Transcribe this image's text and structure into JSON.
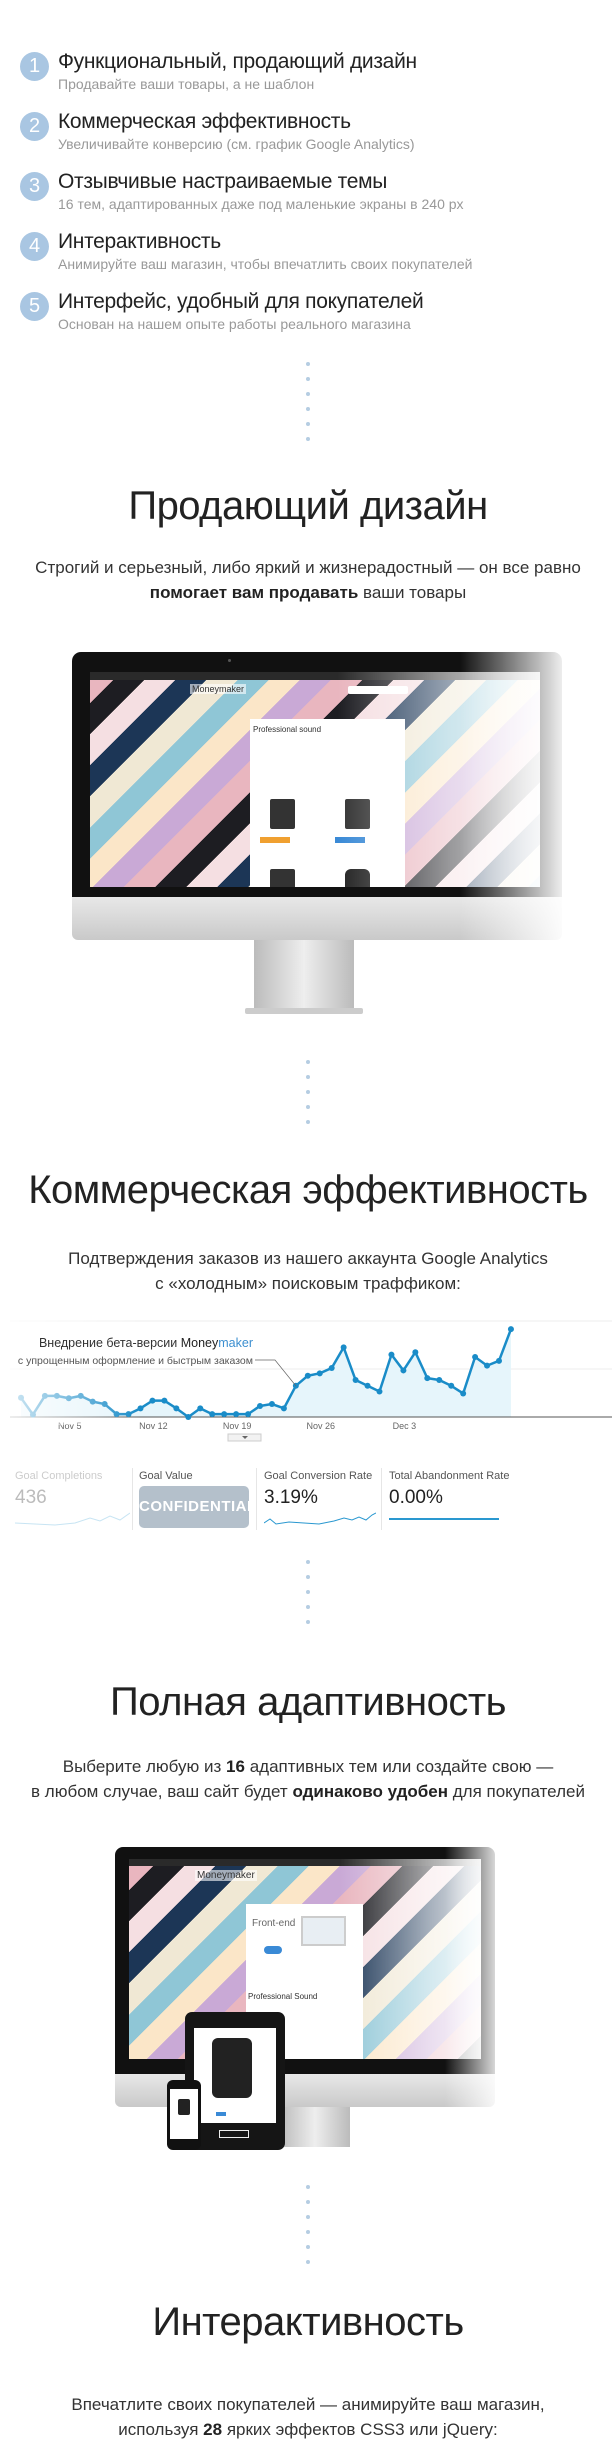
{
  "features": [
    {
      "num": "1",
      "title": "Функциональный, продающий дизайн",
      "subtitle": "Продавайте ваши товары, а не шаблон"
    },
    {
      "num": "2",
      "title": "Коммерческая эффективность",
      "subtitle": "Увеличивайте конверсию (см. график Google Analytics)"
    },
    {
      "num": "3",
      "title": "Отзывчивые настраиваемые темы",
      "subtitle": "16 тем, адаптированных даже под маленькие экраны в 240 px"
    },
    {
      "num": "4",
      "title": "Интерактивность",
      "subtitle": "Анимируйте ваш магазин, чтобы впечатлить своих покупателей"
    },
    {
      "num": "5",
      "title": "Интерфейс, удобный для покупателей",
      "subtitle": "Основан на нашем опыте работы реального магазина"
    }
  ],
  "section_design": {
    "title": "Продающий дизайн",
    "line1": "Строгий и серьезный, либо яркий и жизнерадостный — он все равно",
    "line2_bold": "помогает вам продавать",
    "line2_rest": " ваши товары",
    "screen": {
      "logo": "Moneymaker",
      "heading": "Professional sound"
    }
  },
  "section_commerce": {
    "title": "Коммерческая эффективность",
    "line1": "Подтверждения заказов из нашего аккаунта Google Analytics",
    "line2": "с «холодным» поисковым траффиком:",
    "annotation": {
      "line1_prefix": "Внедрение бета-версии ",
      "brand_dark": "Money",
      "brand_light": "maker",
      "line2": "с упрощенным оформление и быстрым заказом"
    },
    "kpis": [
      {
        "label": "Goal Completions",
        "value": "436"
      },
      {
        "label": "Goal Value",
        "value": "CONFIDENTIAL"
      },
      {
        "label": "Goal Conversion Rate",
        "value": "3.19%"
      },
      {
        "label": "Total Abandonment Rate",
        "value": "0.00%"
      }
    ]
  },
  "chart_data": {
    "type": "area",
    "x_ticks": [
      "Nov 5",
      "Nov 12",
      "Nov 19",
      "Nov 26",
      "Dec 3"
    ],
    "x": [
      "Nov 1",
      "Nov 2",
      "Nov 3",
      "Nov 4",
      "Nov 5",
      "Nov 6",
      "Nov 7",
      "Nov 8",
      "Nov 9",
      "Nov 10",
      "Nov 11",
      "Nov 12",
      "Nov 13",
      "Nov 14",
      "Nov 15",
      "Nov 16",
      "Nov 17",
      "Nov 18",
      "Nov 19",
      "Nov 20",
      "Nov 21",
      "Nov 22",
      "Nov 23",
      "Nov 24",
      "Nov 25",
      "Nov 26",
      "Nov 27",
      "Nov 28",
      "Nov 29",
      "Nov 30",
      "Dec 1",
      "Dec 2",
      "Dec 3",
      "Dec 4",
      "Dec 5",
      "Dec 6",
      "Dec 7",
      "Dec 8",
      "Dec 9",
      "Dec 10",
      "Dec 11",
      "Dec 12"
    ],
    "values": [
      0.4,
      0.05,
      0.44,
      0.44,
      0.39,
      0.44,
      0.32,
      0.27,
      0.06,
      0.06,
      0.18,
      0.34,
      0.34,
      0.18,
      0.0,
      0.18,
      0.06,
      0.06,
      0.06,
      0.06,
      0.23,
      0.27,
      0.18,
      0.65,
      0.86,
      0.91,
      1.02,
      1.45,
      0.77,
      0.65,
      0.53,
      1.3,
      0.97,
      1.35,
      0.81,
      0.77,
      0.65,
      0.49,
      1.25,
      1.07,
      1.17,
      1.83
    ],
    "ylim": [
      0,
      2
    ],
    "grid": true,
    "line_color": "#1a8cc8",
    "fill_color": "#e6f5fb"
  },
  "section_adaptive": {
    "title": "Полная адаптивность",
    "l1a": "Выберите любую из ",
    "l1b": "16",
    "l1c": " адаптивных тем или создайте свою —",
    "l2a": "в любом случае, ваш сайт будет ",
    "l2b": "одинаково удобен",
    "l2c": " для покупателей",
    "screen": {
      "logo": "Moneymaker",
      "banner": "Front-end",
      "heading": "Professional Sound"
    }
  },
  "section_interactive": {
    "title": "Интерактивность",
    "l1": "Впечатлите своих покупателей — анимируйте ваш магазин,",
    "l2a": "используя ",
    "l2b": "28",
    "l2c": " ярких эффектов CSS3 или jQuery:"
  }
}
